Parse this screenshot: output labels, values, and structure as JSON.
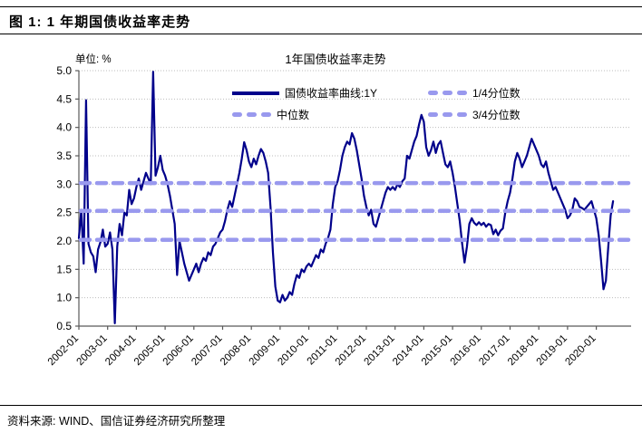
{
  "header": {
    "figure_title": "图 1: 1 年期国债收益率走势"
  },
  "footer": {
    "source": "资料来源: WIND、国信证券经济研究所整理"
  },
  "chart": {
    "unit_label": "单位: %",
    "title": "1年国债收益率走势"
  },
  "colors": {
    "line": "#00008B",
    "quantile_dash": "#9999EE",
    "grid": "#bdbdbd",
    "axis": "#595959",
    "text": "#000000"
  },
  "chart_data": {
    "type": "line",
    "title": "1年国债收益率走势",
    "unit": "%",
    "series_name": "国债收益率曲线:1Y",
    "ylim": [
      0.5,
      5.0
    ],
    "y_ticks": [
      "0.5",
      "1.0",
      "1.5",
      "2.0",
      "2.5",
      "3.0",
      "3.5",
      "4.0",
      "4.5",
      "5.0"
    ],
    "x_tick_labels": [
      "2002-01",
      "2003-01",
      "2004-01",
      "2005-01",
      "2006-01",
      "2007-01",
      "2008-01",
      "2009-01",
      "2010-01",
      "2011-01",
      "2012-01",
      "2013-01",
      "2014-01",
      "2015-01",
      "2016-01",
      "2017-01",
      "2018-01",
      "2019-01",
      "2020-01"
    ],
    "x_start": "2002-01",
    "x_freq": "monthly",
    "grid": "horizontal-dotted",
    "legend_position": "top-inside",
    "quantiles": {
      "q1": {
        "label": "1/4分位数",
        "value": 2.02
      },
      "median": {
        "label": "中位数",
        "value": 2.53
      },
      "q3": {
        "label": "3/4分位数",
        "value": 3.02
      }
    },
    "values": [
      2.05,
      2.55,
      1.6,
      4.48,
      1.95,
      1.8,
      1.73,
      1.45,
      1.85,
      1.98,
      2.2,
      1.9,
      1.95,
      2.15,
      1.85,
      0.55,
      1.9,
      2.3,
      2.1,
      2.5,
      2.45,
      2.9,
      2.65,
      2.75,
      2.95,
      3.1,
      2.9,
      3.05,
      3.2,
      3.1,
      3.0,
      4.98,
      3.15,
      3.3,
      3.5,
      3.25,
      3.15,
      3.0,
      2.8,
      2.55,
      2.3,
      1.4,
      2.0,
      1.8,
      1.6,
      1.45,
      1.3,
      1.4,
      1.5,
      1.6,
      1.45,
      1.6,
      1.7,
      1.65,
      1.8,
      1.75,
      1.9,
      1.95,
      2.05,
      2.15,
      2.2,
      2.35,
      2.55,
      2.7,
      2.6,
      2.8,
      3.0,
      3.2,
      3.45,
      3.74,
      3.6,
      3.4,
      3.3,
      3.45,
      3.35,
      3.5,
      3.62,
      3.55,
      3.4,
      3.2,
      2.6,
      1.8,
      1.2,
      0.95,
      0.92,
      1.05,
      0.95,
      1.0,
      1.1,
      1.05,
      1.25,
      1.4,
      1.35,
      1.5,
      1.45,
      1.55,
      1.6,
      1.55,
      1.65,
      1.75,
      1.7,
      1.85,
      1.8,
      1.95,
      2.05,
      2.2,
      2.65,
      2.95,
      3.05,
      3.25,
      3.5,
      3.65,
      3.75,
      3.7,
      3.9,
      3.8,
      3.6,
      3.35,
      3.1,
      2.8,
      2.6,
      2.45,
      2.55,
      2.3,
      2.25,
      2.4,
      2.55,
      2.7,
      2.85,
      2.95,
      2.9,
      2.95,
      2.9,
      3.0,
      2.95,
      3.05,
      3.1,
      3.5,
      3.45,
      3.6,
      3.75,
      3.85,
      4.05,
      4.22,
      4.1,
      3.65,
      3.5,
      3.6,
      3.75,
      3.55,
      3.7,
      3.76,
      3.55,
      3.35,
      3.3,
      3.4,
      3.2,
      2.95,
      2.65,
      2.35,
      1.95,
      1.62,
      1.9,
      2.3,
      2.4,
      2.32,
      2.28,
      2.33,
      2.28,
      2.32,
      2.25,
      2.3,
      2.28,
      2.12,
      2.2,
      2.1,
      2.18,
      2.22,
      2.5,
      2.7,
      2.85,
      3.1,
      3.4,
      3.55,
      3.45,
      3.3,
      3.4,
      3.5,
      3.65,
      3.8,
      3.7,
      3.6,
      3.5,
      3.35,
      3.3,
      3.4,
      3.2,
      3.05,
      2.9,
      2.95,
      2.85,
      2.75,
      2.65,
      2.55,
      2.4,
      2.45,
      2.55,
      2.75,
      2.7,
      2.6,
      2.58,
      2.55,
      2.6,
      2.65,
      2.7,
      2.55,
      2.4,
      2.1,
      1.65,
      1.15,
      1.3,
      1.9,
      2.45,
      2.7
    ]
  }
}
